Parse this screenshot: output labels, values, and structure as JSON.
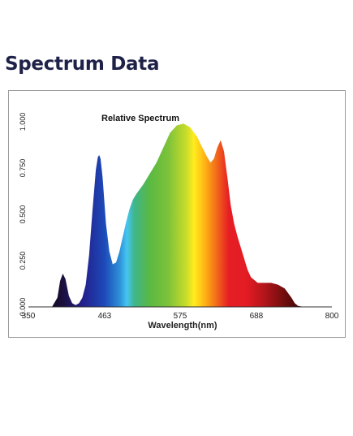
{
  "page": {
    "heading": "Spectrum Data"
  },
  "chart_data": {
    "type": "area",
    "title": "Relative Spectrum",
    "xlabel": "Wavelength(nm)",
    "ylabel": "",
    "x_ticks": [
      "350",
      "463",
      "575",
      "688",
      "800"
    ],
    "y_ticks": [
      "0.000",
      "0.250",
      "0.500",
      "0.750",
      "1.000"
    ],
    "xlim": [
      350,
      800
    ],
    "ylim": [
      0,
      1.0
    ],
    "grid": false,
    "series": [
      {
        "x": [
          350,
          385,
          393,
          397,
          401,
          405,
          410,
          415,
          420,
          425,
          430,
          435,
          440,
          445,
          450,
          453,
          455,
          457,
          460,
          465,
          470,
          475,
          480,
          485,
          490,
          495,
          500,
          505,
          510,
          520,
          530,
          540,
          550,
          560,
          570,
          580,
          590,
          600,
          608,
          615,
          620,
          625,
          630,
          635,
          640,
          645,
          650,
          655,
          660,
          665,
          670,
          675,
          680,
          690,
          700,
          710,
          720,
          730,
          740,
          745,
          750,
          760,
          770,
          780,
          800
        ],
        "y": [
          0.0,
          0.0,
          0.05,
          0.14,
          0.18,
          0.15,
          0.06,
          0.02,
          0.01,
          0.02,
          0.05,
          0.12,
          0.28,
          0.52,
          0.74,
          0.81,
          0.82,
          0.8,
          0.7,
          0.45,
          0.3,
          0.23,
          0.24,
          0.3,
          0.38,
          0.46,
          0.53,
          0.58,
          0.61,
          0.66,
          0.72,
          0.78,
          0.86,
          0.94,
          0.98,
          0.99,
          0.97,
          0.92,
          0.86,
          0.81,
          0.78,
          0.8,
          0.86,
          0.9,
          0.84,
          0.7,
          0.55,
          0.45,
          0.38,
          0.32,
          0.26,
          0.2,
          0.16,
          0.13,
          0.13,
          0.13,
          0.12,
          0.1,
          0.05,
          0.02,
          0.005,
          0.0,
          0.0,
          0.0,
          0.0
        ]
      }
    ]
  }
}
